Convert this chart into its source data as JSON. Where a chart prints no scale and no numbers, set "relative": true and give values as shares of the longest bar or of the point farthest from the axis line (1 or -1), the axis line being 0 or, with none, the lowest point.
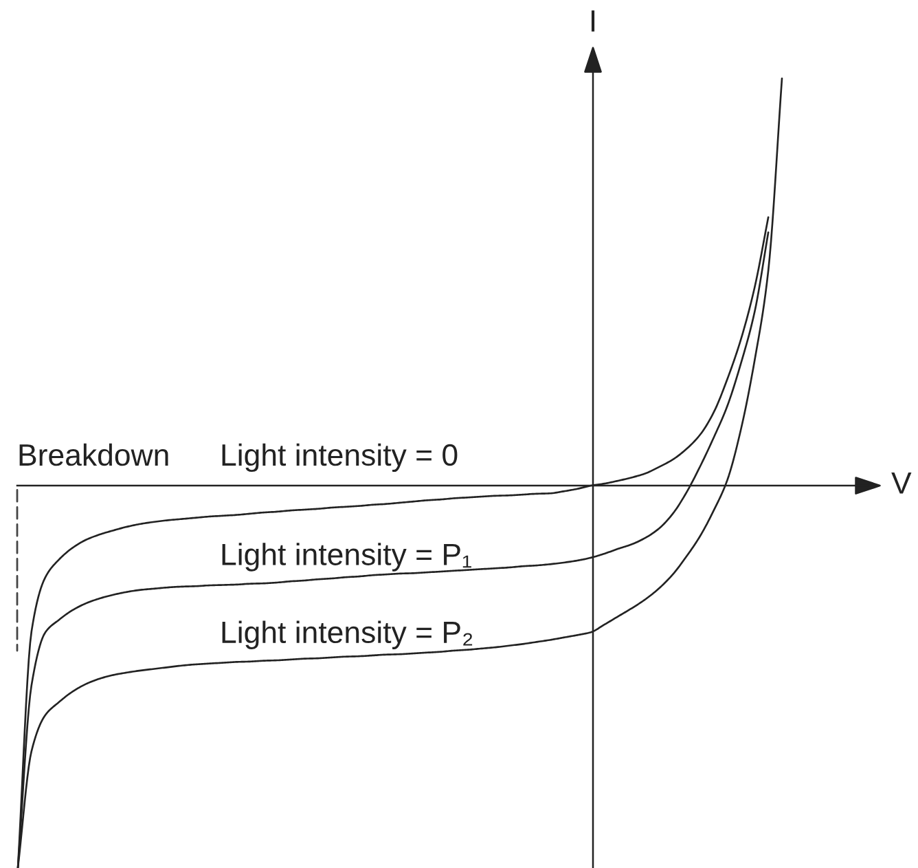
{
  "chart_data": {
    "type": "line",
    "relative": true,
    "xlabel": "V",
    "ylabel": "I",
    "line_style": "solid",
    "annotations": [
      "Breakdown"
    ],
    "categories": [
      null,
      null,
      null,
      null,
      null,
      null,
      null,
      null,
      null,
      null,
      null,
      null,
      null,
      null,
      null,
      null,
      null,
      null,
      null,
      null,
      null,
      null,
      null,
      null,
      null,
      null,
      null,
      null,
      null,
      null,
      null,
      null,
      null,
      null,
      null,
      null,
      null,
      null,
      null,
      null,
      null,
      null,
      null,
      null,
      null,
      null,
      null,
      null,
      null,
      null,
      null,
      null,
      null,
      null,
      null,
      null,
      null
    ],
    "series": [
      {
        "name": "Light intensity = 0",
        "color": "#222222",
        "values": [
          -0.939,
          -0.358,
          -0.226,
          -0.182,
          -0.153,
          -0.133,
          -0.12,
          -0.11,
          -0.101,
          -0.094,
          -0.089,
          -0.085,
          -0.082,
          -0.079,
          -0.076,
          -0.074,
          -0.072,
          -0.069,
          -0.066,
          -0.064,
          -0.061,
          -0.059,
          -0.057,
          -0.054,
          -0.052,
          -0.05,
          -0.047,
          -0.045,
          -0.042,
          -0.039,
          -0.036,
          -0.034,
          -0.031,
          -0.029,
          -0.027,
          -0.025,
          -0.024,
          -0.022,
          -0.02,
          -0.019,
          -0.014,
          -0.008,
          0,
          0.005,
          0.012,
          0.02,
          0.03,
          0.046,
          0.064,
          0.09,
          0.125,
          0.18,
          0.262,
          0.36,
          0.487,
          0.659,
          null
        ]
      },
      {
        "name": "Light intensity = P₁",
        "color": "#222222",
        "values": [
          -0.939,
          -0.49,
          -0.361,
          -0.33,
          -0.306,
          -0.289,
          -0.277,
          -0.268,
          -0.261,
          -0.256,
          -0.253,
          -0.25,
          -0.248,
          -0.247,
          -0.245,
          -0.244,
          -0.243,
          -0.241,
          -0.24,
          -0.238,
          -0.235,
          -0.233,
          -0.23,
          -0.228,
          -0.225,
          -0.223,
          -0.22,
          -0.218,
          -0.216,
          -0.215,
          -0.213,
          -0.211,
          -0.209,
          -0.207,
          -0.205,
          -0.203,
          -0.201,
          -0.198,
          -0.196,
          -0.193,
          -0.189,
          -0.184,
          -0.177,
          -0.167,
          -0.155,
          -0.144,
          -0.128,
          -0.105,
          -0.069,
          -0.017,
          0.047,
          0.118,
          0.196,
          0.301,
          0.427,
          0.622,
          null
        ]
      },
      {
        "name": "Light intensity = P₂",
        "color": "#222222",
        "values": [
          -0.939,
          -0.652,
          -0.564,
          -0.532,
          -0.506,
          -0.487,
          -0.474,
          -0.465,
          -0.459,
          -0.454,
          -0.45,
          -0.446,
          -0.442,
          -0.439,
          -0.437,
          -0.435,
          -0.433,
          -0.432,
          -0.43,
          -0.429,
          -0.427,
          -0.425,
          -0.424,
          -0.422,
          -0.42,
          -0.419,
          -0.417,
          -0.415,
          -0.414,
          -0.412,
          -0.41,
          -0.408,
          -0.405,
          -0.403,
          -0.4,
          -0.397,
          -0.393,
          -0.389,
          -0.384,
          -0.379,
          -0.373,
          -0.367,
          -0.36,
          -0.341,
          -0.321,
          -0.301,
          -0.279,
          -0.252,
          -0.218,
          -0.174,
          -0.124,
          -0.061,
          0.014,
          0.139,
          0.308,
          0.528,
          1.0
        ]
      }
    ]
  }
}
